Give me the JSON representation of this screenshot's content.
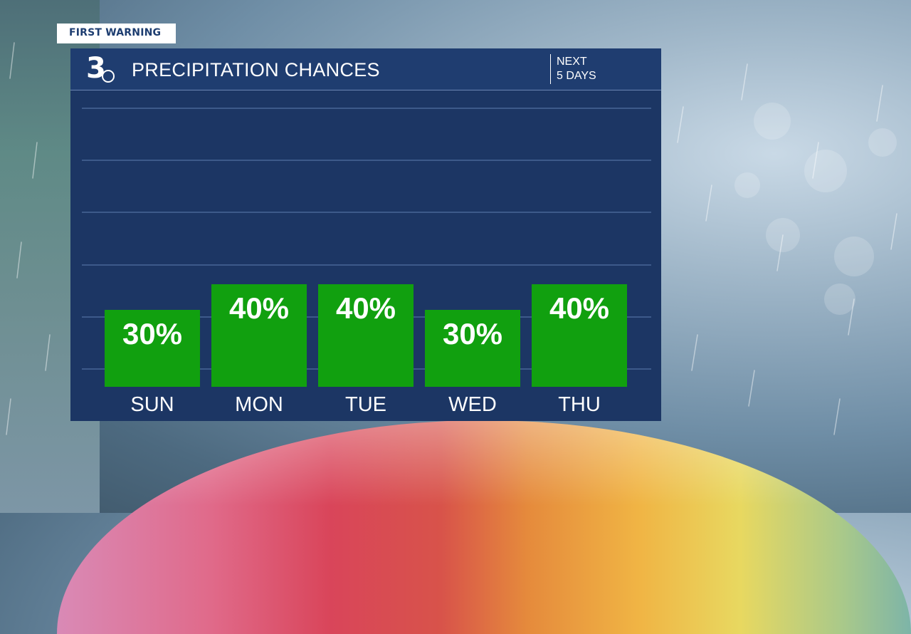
{
  "tag": "FIRST WARNING",
  "header": {
    "logo": "3",
    "title": "PRECIPITATION CHANCES",
    "period_line1": "NEXT",
    "period_line2": "5 DAYS"
  },
  "colors": {
    "panel": "#1c3664",
    "header": "#1f3d70",
    "bar": "#11a00f",
    "gridline": "#3d5a8a"
  },
  "chart_data": {
    "type": "bar",
    "title": "PRECIPITATION CHANCES",
    "categories": [
      "SUN",
      "MON",
      "TUE",
      "WED",
      "THU"
    ],
    "values": [
      30,
      40,
      40,
      30,
      40
    ],
    "value_labels": [
      "30%",
      "40%",
      "40%",
      "30%",
      "40%"
    ],
    "ylim": [
      0,
      100
    ],
    "grid": true
  }
}
